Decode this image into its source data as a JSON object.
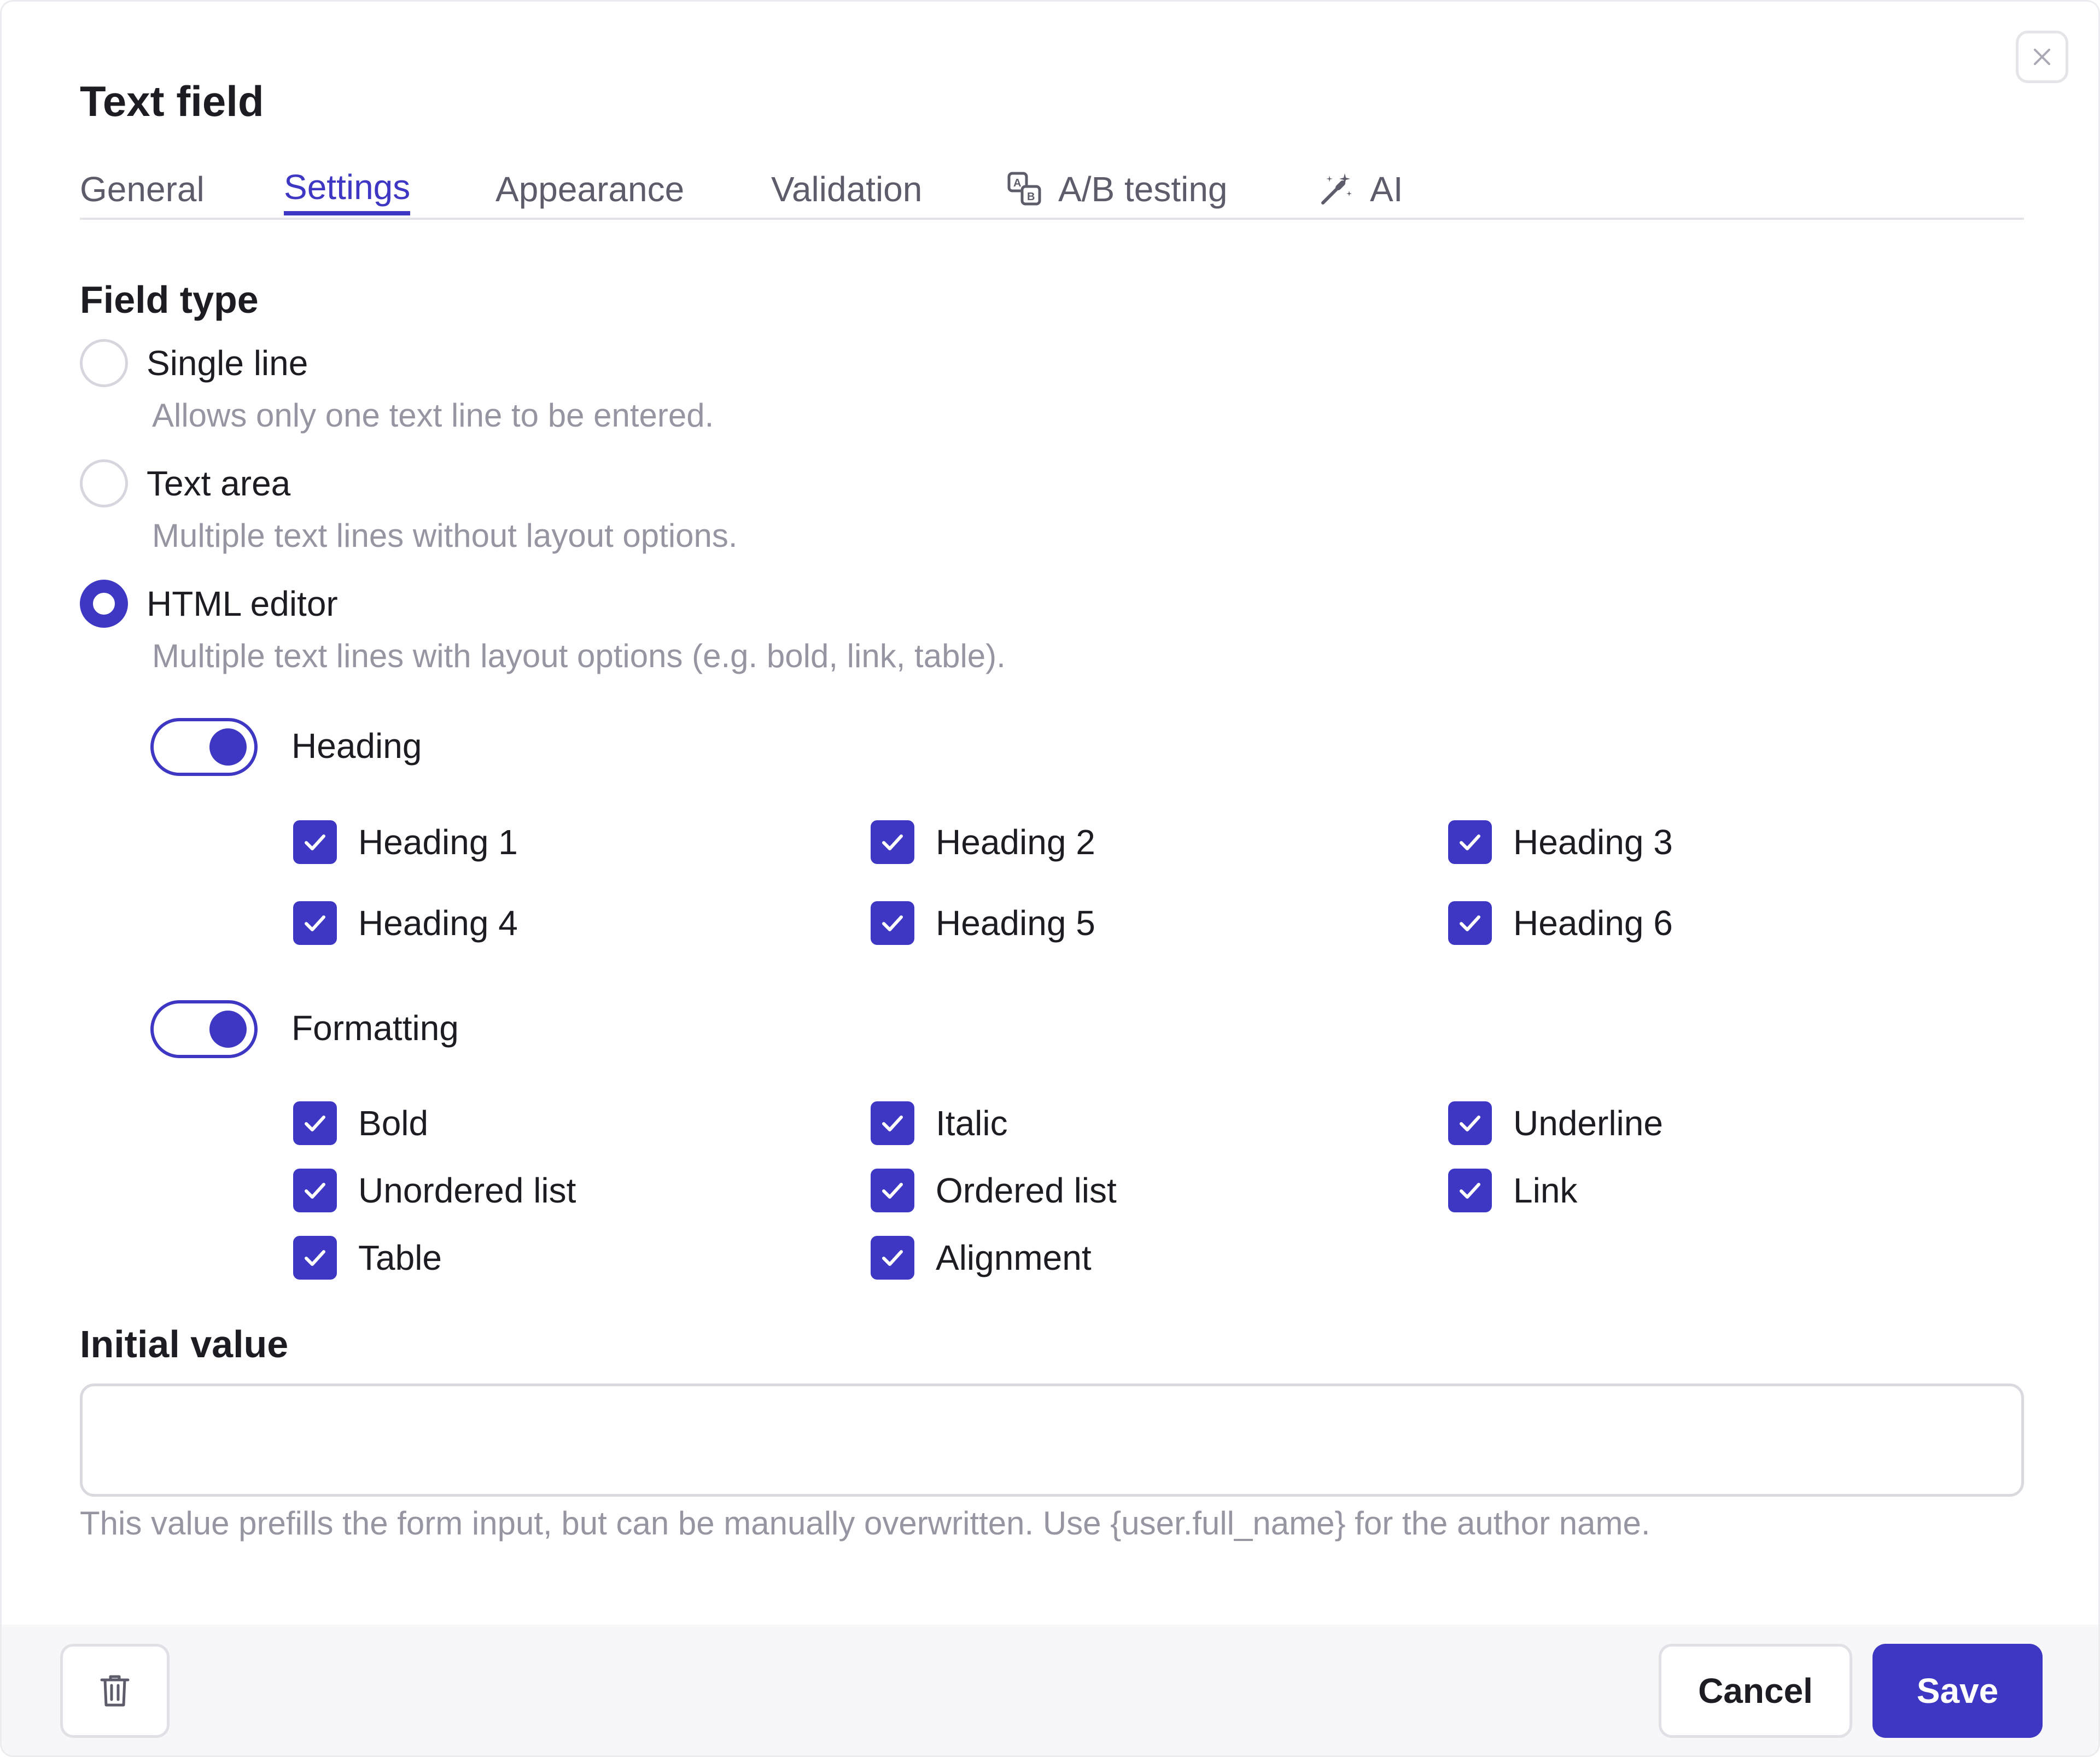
{
  "dialog": {
    "title": "Text field",
    "close_icon": "close-icon"
  },
  "tabs": [
    {
      "label": "General",
      "active": false
    },
    {
      "label": "Settings",
      "active": true
    },
    {
      "label": "Appearance",
      "active": false
    },
    {
      "label": "Validation",
      "active": false
    },
    {
      "label": "A/B testing",
      "active": false,
      "icon": "ab-testing-icon"
    },
    {
      "label": "AI",
      "active": false,
      "icon": "magic-wand-icon"
    }
  ],
  "field_type": {
    "title": "Field type",
    "options": [
      {
        "label": "Single line",
        "help": "Allows only one text line to be entered.",
        "selected": false
      },
      {
        "label": "Text area",
        "help": "Multiple text lines without layout options.",
        "selected": false
      },
      {
        "label": "HTML editor",
        "help": "Multiple text lines with layout options (e.g. bold, link, table).",
        "selected": true
      }
    ]
  },
  "heading_group": {
    "label": "Heading",
    "enabled": true,
    "items": [
      {
        "label": "Heading 1",
        "checked": true
      },
      {
        "label": "Heading 2",
        "checked": true
      },
      {
        "label": "Heading 3",
        "checked": true
      },
      {
        "label": "Heading 4",
        "checked": true
      },
      {
        "label": "Heading 5",
        "checked": true
      },
      {
        "label": "Heading 6",
        "checked": true
      }
    ]
  },
  "formatting_group": {
    "label": "Formatting",
    "enabled": true,
    "items": [
      {
        "label": "Bold",
        "checked": true
      },
      {
        "label": "Italic",
        "checked": true
      },
      {
        "label": "Underline",
        "checked": true
      },
      {
        "label": "Unordered list",
        "checked": true
      },
      {
        "label": "Ordered list",
        "checked": true
      },
      {
        "label": "Link",
        "checked": true
      },
      {
        "label": "Table",
        "checked": true
      },
      {
        "label": "Alignment",
        "checked": true
      }
    ]
  },
  "initial_value": {
    "title": "Initial value",
    "value": "",
    "placeholder": "",
    "help": "This value prefills the form input, but can be manually overwritten. Use {user.full_name} for the author name."
  },
  "footer": {
    "delete_icon": "trash-icon",
    "cancel_label": "Cancel",
    "save_label": "Save"
  },
  "colors": {
    "accent": "#3d37c3",
    "muted_text": "#9696a3",
    "border": "#d9d9e0"
  }
}
